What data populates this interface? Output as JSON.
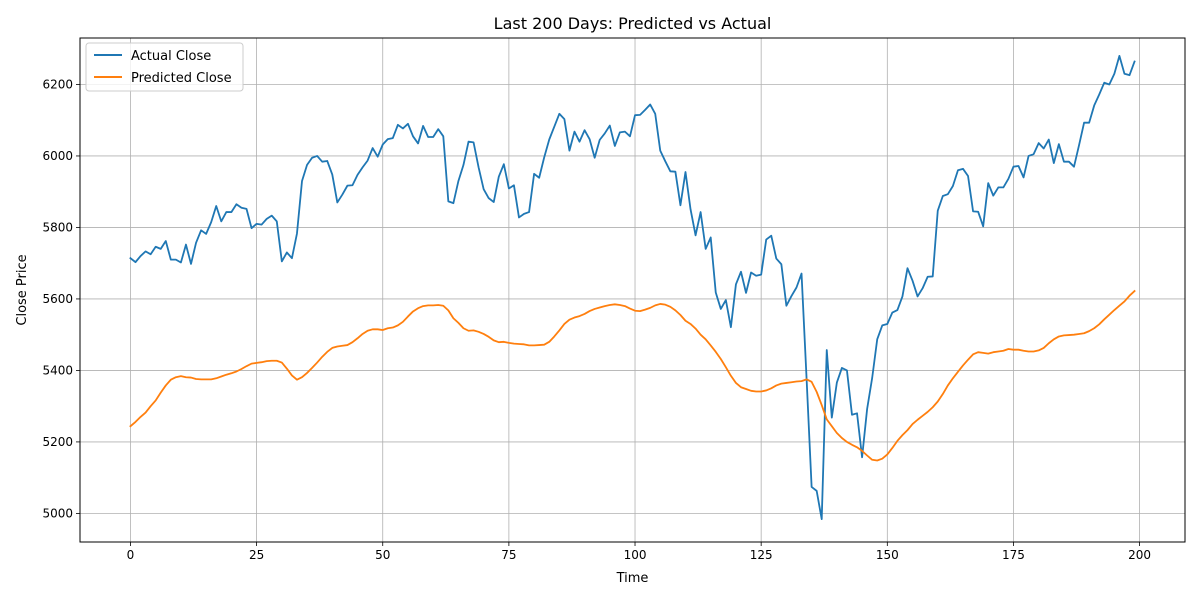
{
  "chart_data": {
    "type": "line",
    "title": "Last 200 Days: Predicted vs Actual",
    "xlabel": "Time",
    "ylabel": "Close Price",
    "xlim": [
      -10,
      209
    ],
    "ylim": [
      4920,
      6330
    ],
    "xticks": [
      0,
      25,
      50,
      75,
      100,
      125,
      150,
      175,
      200
    ],
    "yticks": [
      5000,
      5200,
      5400,
      5600,
      5800,
      6000,
      6200
    ],
    "grid": true,
    "legend_position": "top-left",
    "series": [
      {
        "name": "Actual Close",
        "color": "#1f77b4",
        "x": [
          0,
          1,
          2,
          3,
          4,
          5,
          6,
          7,
          8,
          9,
          10,
          11,
          12,
          13,
          14,
          15,
          16,
          17,
          18,
          19,
          20,
          21,
          22,
          23,
          24,
          25,
          26,
          27,
          28,
          29,
          30,
          31,
          32,
          33,
          34,
          35,
          36,
          37,
          38,
          39,
          40,
          41,
          42,
          43,
          44,
          45,
          46,
          47,
          48,
          49,
          50,
          51,
          52,
          53,
          54,
          55,
          56,
          57,
          58,
          59,
          60,
          61,
          62,
          63,
          64,
          65,
          66,
          67,
          68,
          69,
          70,
          71,
          72,
          73,
          74,
          75,
          76,
          77,
          78,
          79,
          80,
          81,
          82,
          83,
          84,
          85,
          86,
          87,
          88,
          89,
          90,
          91,
          92,
          93,
          94,
          95,
          96,
          97,
          98,
          99,
          100,
          101,
          102,
          103,
          104,
          105,
          106,
          107,
          108,
          109,
          110,
          111,
          112,
          113,
          114,
          115,
          116,
          117,
          118,
          119,
          120,
          121,
          122,
          123,
          124,
          125,
          126,
          127,
          128,
          129,
          130,
          131,
          132,
          133,
          134,
          135,
          136,
          137,
          138,
          139,
          140,
          141,
          142,
          143,
          144,
          145,
          146,
          147,
          148,
          149,
          150,
          151,
          152,
          153,
          154,
          155,
          156,
          157,
          158,
          159,
          160,
          161,
          162,
          163,
          164,
          165,
          166,
          167,
          168,
          169,
          170,
          171,
          172,
          173,
          174,
          175,
          176,
          177,
          178,
          179,
          180,
          181,
          182,
          183,
          184,
          185,
          186,
          187,
          188,
          189,
          190,
          191,
          192,
          193,
          194,
          195,
          196,
          197,
          198,
          199
        ],
        "values": [
          5714,
          5703,
          5720,
          5733,
          5725,
          5746,
          5740,
          5762,
          5710,
          5710,
          5702,
          5752,
          5698,
          5757,
          5792,
          5782,
          5815,
          5860,
          5817,
          5843,
          5843,
          5865,
          5855,
          5852,
          5798,
          5810,
          5808,
          5824,
          5833,
          5817,
          5705,
          5730,
          5714,
          5783,
          5930,
          5975,
          5995,
          6000,
          5984,
          5986,
          5948,
          5870,
          5892,
          5917,
          5918,
          5947,
          5968,
          5987,
          6022,
          5998,
          6032,
          6047,
          6050,
          6087,
          6077,
          6090,
          6055,
          6035,
          6084,
          6053,
          6053,
          6075,
          6055,
          5873,
          5868,
          5930,
          5975,
          6040,
          6038,
          5968,
          5907,
          5882,
          5871,
          5942,
          5977,
          5909,
          5918,
          5828,
          5838,
          5843,
          5950,
          5939,
          5996,
          6046,
          6082,
          6118,
          6103,
          6015,
          6068,
          6040,
          6072,
          6047,
          5995,
          6045,
          6063,
          6085,
          6028,
          6066,
          6068,
          6055,
          6114,
          6115,
          6129,
          6144,
          6118,
          6015,
          5985,
          5957,
          5956,
          5862,
          5955,
          5851,
          5778,
          5843,
          5740,
          5772,
          5618,
          5572,
          5597,
          5521,
          5641,
          5676,
          5617,
          5674,
          5665,
          5668,
          5766,
          5777,
          5713,
          5697,
          5581,
          5608,
          5632,
          5671,
          5377,
          5074,
          5063,
          4984,
          5457,
          5268,
          5366,
          5407,
          5400,
          5276,
          5280,
          5157,
          5292,
          5379,
          5487,
          5526,
          5530,
          5562,
          5569,
          5607,
          5686,
          5651,
          5607,
          5630,
          5662,
          5663,
          5847,
          5888,
          5893,
          5916,
          5960,
          5964,
          5944,
          5845,
          5844,
          5803,
          5924,
          5889,
          5912,
          5912,
          5936,
          5970,
          5972,
          5940,
          6000,
          6005,
          6036,
          6021,
          6046,
          5980,
          6033,
          5984,
          5984,
          5970,
          6030,
          6093,
          6093,
          6141,
          6172,
          6205,
          6200,
          6230,
          6280,
          6230,
          6226,
          6264
        ]
      },
      {
        "name": "Predicted Close",
        "color": "#ff7f0e",
        "x": [
          0,
          1,
          2,
          3,
          4,
          5,
          6,
          7,
          8,
          9,
          10,
          11,
          12,
          13,
          14,
          15,
          16,
          17,
          18,
          19,
          20,
          21,
          22,
          23,
          24,
          25,
          26,
          27,
          28,
          29,
          30,
          31,
          32,
          33,
          34,
          35,
          36,
          37,
          38,
          39,
          40,
          41,
          42,
          43,
          44,
          45,
          46,
          47,
          48,
          49,
          50,
          51,
          52,
          53,
          54,
          55,
          56,
          57,
          58,
          59,
          60,
          61,
          62,
          63,
          64,
          65,
          66,
          67,
          68,
          69,
          70,
          71,
          72,
          73,
          74,
          75,
          76,
          77,
          78,
          79,
          80,
          81,
          82,
          83,
          84,
          85,
          86,
          87,
          88,
          89,
          90,
          91,
          92,
          93,
          94,
          95,
          96,
          97,
          98,
          99,
          100,
          101,
          102,
          103,
          104,
          105,
          106,
          107,
          108,
          109,
          110,
          111,
          112,
          113,
          114,
          115,
          116,
          117,
          118,
          119,
          120,
          121,
          122,
          123,
          124,
          125,
          126,
          127,
          128,
          129,
          130,
          131,
          132,
          133,
          134,
          135,
          136,
          137,
          138,
          139,
          140,
          141,
          142,
          143,
          144,
          145,
          146,
          147,
          148,
          149,
          150,
          151,
          152,
          153,
          154,
          155,
          156,
          157,
          158,
          159,
          160,
          161,
          162,
          163,
          164,
          165,
          166,
          167,
          168,
          169,
          170,
          171,
          172,
          173,
          174,
          175,
          176,
          177,
          178,
          179,
          180,
          181,
          182,
          183,
          184,
          185,
          186,
          187,
          188,
          189,
          190,
          191,
          192,
          193,
          194,
          195,
          196,
          197,
          198,
          199
        ],
        "values": [
          5244,
          5256,
          5270,
          5282,
          5300,
          5316,
          5338,
          5358,
          5374,
          5381,
          5384,
          5381,
          5380,
          5376,
          5375,
          5375,
          5375,
          5378,
          5383,
          5388,
          5392,
          5397,
          5404,
          5412,
          5419,
          5421,
          5423,
          5426,
          5427,
          5427,
          5422,
          5405,
          5386,
          5374,
          5381,
          5393,
          5407,
          5422,
          5438,
          5452,
          5463,
          5467,
          5469,
          5471,
          5479,
          5490,
          5502,
          5511,
          5515,
          5515,
          5513,
          5518,
          5520,
          5526,
          5536,
          5551,
          5565,
          5574,
          5580,
          5582,
          5582,
          5583,
          5581,
          5568,
          5546,
          5533,
          5518,
          5511,
          5512,
          5508,
          5502,
          5494,
          5484,
          5479,
          5480,
          5477,
          5475,
          5474,
          5473,
          5470,
          5470,
          5471,
          5472,
          5480,
          5495,
          5512,
          5530,
          5542,
          5548,
          5552,
          5558,
          5566,
          5572,
          5576,
          5580,
          5583,
          5585,
          5583,
          5580,
          5573,
          5567,
          5566,
          5570,
          5575,
          5582,
          5586,
          5584,
          5578,
          5568,
          5555,
          5539,
          5530,
          5517,
          5500,
          5487,
          5470,
          5452,
          5432,
          5409,
          5385,
          5365,
          5353,
          5348,
          5343,
          5341,
          5341,
          5344,
          5350,
          5358,
          5363,
          5365,
          5367,
          5369,
          5370,
          5375,
          5368,
          5340,
          5303,
          5263,
          5244,
          5225,
          5211,
          5200,
          5192,
          5185,
          5175,
          5162,
          5150,
          5148,
          5153,
          5165,
          5183,
          5203,
          5219,
          5233,
          5250,
          5262,
          5273,
          5284,
          5297,
          5313,
          5334,
          5358,
          5378,
          5396,
          5414,
          5430,
          5445,
          5451,
          5449,
          5447,
          5451,
          5453,
          5455,
          5460,
          5458,
          5458,
          5455,
          5453,
          5453,
          5456,
          5463,
          5476,
          5487,
          5495,
          5498,
          5499,
          5500,
          5502,
          5504,
          5510,
          5518,
          5529,
          5543,
          5556,
          5569,
          5581,
          5593,
          5609,
          5622
        ]
      }
    ]
  }
}
